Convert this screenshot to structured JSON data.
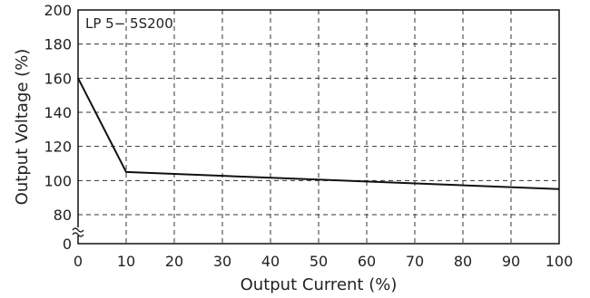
{
  "chart_data": {
    "type": "line",
    "annotation": "LP 5− 5S200",
    "xlabel": "Output Current (%)",
    "ylabel": "Output Voltage (%)",
    "xlim": [
      0,
      100
    ],
    "ylim": [
      0,
      200
    ],
    "y_axis_break": true,
    "grid": true,
    "grid_style": "dashed",
    "x_ticks": [
      0,
      10,
      20,
      30,
      40,
      50,
      60,
      70,
      80,
      90,
      100
    ],
    "y_ticks": [
      0,
      80,
      100,
      120,
      140,
      160,
      180,
      200
    ],
    "series": [
      {
        "x": [
          0,
          10,
          100
        ],
        "y": [
          160,
          105,
          95
        ]
      }
    ],
    "colors": {
      "line": "#111111",
      "grid": "#333333",
      "axes": "#111111"
    }
  }
}
